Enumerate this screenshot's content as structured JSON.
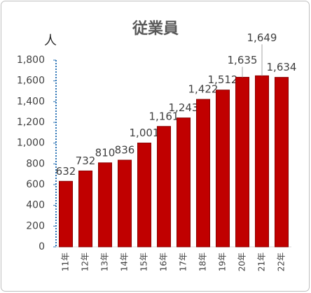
{
  "chart_data": {
    "type": "bar",
    "title": "従業員",
    "y_label": "人",
    "categories": [
      "11年",
      "12年",
      "13年",
      "14年",
      "15年",
      "16年",
      "17年",
      "18年",
      "19年",
      "20年",
      "21年",
      "22年"
    ],
    "values": [
      632,
      732,
      810,
      836,
      1001,
      1161,
      1243,
      1422,
      1512,
      1635,
      1649,
      1634
    ],
    "value_labels": [
      "632",
      "732",
      "810",
      "836",
      "1,001",
      "1,161",
      "1,243",
      "1,422",
      "1,512",
      "1,635",
      "1,649",
      "1,634"
    ],
    "color": "#c00000",
    "ylim": [
      0,
      1800
    ],
    "yticks": [
      0,
      200,
      400,
      600,
      800,
      {
        "value": 1000,
        "label": "1,000"
      },
      {
        "value": 1200,
        "label": "1,200"
      },
      {
        "value": 1400,
        "label": "1,400"
      },
      {
        "value": 1600,
        "label": "1,600"
      },
      {
        "value": 1800,
        "label": "1,800"
      }
    ],
    "grid": false
  }
}
